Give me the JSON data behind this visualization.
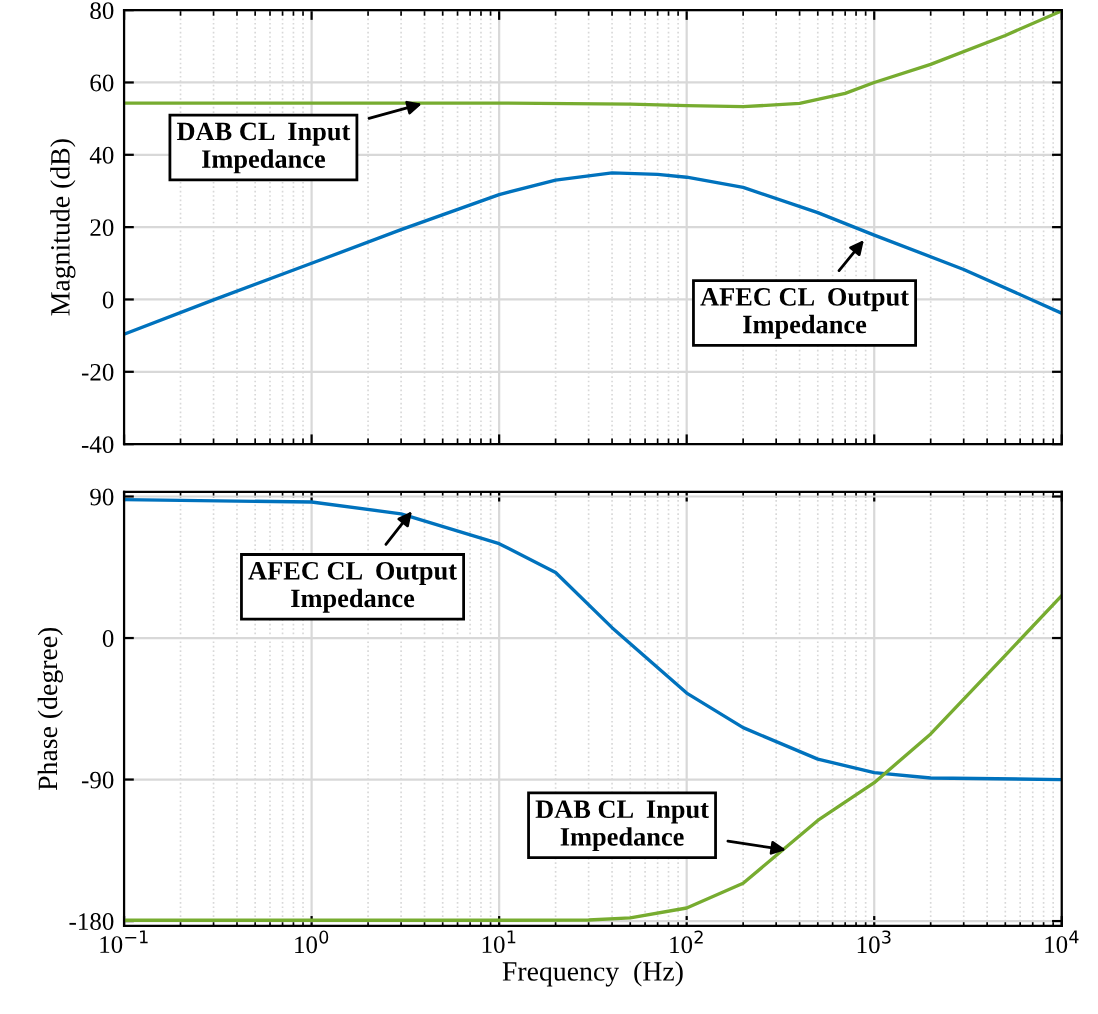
{
  "chart_data": [
    {
      "type": "line",
      "ylabel": "Magnitude (dB)",
      "log": "x",
      "grid": true,
      "tick_labels": "y",
      "xlim": [
        0.1,
        10000
      ],
      "xticks": [
        {
          "value": 0.1,
          "label": null
        },
        {
          "value": 1,
          "label": null
        },
        {
          "value": 10,
          "label": null
        },
        {
          "value": 100,
          "label": null
        },
        {
          "value": 1000,
          "label": null
        },
        {
          "value": 10000,
          "label": null
        }
      ],
      "ylim": [
        -40,
        80
      ],
      "yticks": [
        -40,
        -20,
        0,
        20,
        40,
        60,
        80
      ],
      "series": [
        {
          "color": "#0072bd",
          "x": [
            0.1,
            0.3,
            1,
            3,
            10,
            20,
            40,
            70,
            100,
            200,
            500,
            1000,
            3000,
            10000
          ],
          "values": [
            -9.6,
            -0.1,
            10,
            19.3,
            29,
            33,
            35,
            34.6,
            33.8,
            31,
            24,
            17.8,
            8.3,
            -3.8
          ]
        },
        {
          "color": "#77ac30",
          "x": [
            0.1,
            1,
            10,
            50,
            100,
            200,
            400,
            700,
            1000,
            2000,
            5000,
            10000
          ],
          "values": [
            54.3,
            54.3,
            54.3,
            54,
            53.6,
            53.3,
            54.2,
            57,
            60,
            65,
            73,
            79.8
          ]
        }
      ],
      "annotations": [
        {
          "text": "DAB CL  Input\nImpedance",
          "x": 4,
          "y": 54.3
        },
        {
          "text": "AFEC CL  Output\nImpedance",
          "x": 900,
          "y": 17
        }
      ]
    },
    {
      "type": "line",
      "xlabel": "Frequency  (Hz)",
      "ylabel": "Phase (degree)",
      "log": "x",
      "grid": true,
      "xlim": [
        0.1,
        10000
      ],
      "xticks": [
        {
          "value": 0.1,
          "label": "10$^{−1}$"
        },
        {
          "value": 1,
          "label": "10$^{0}$"
        },
        {
          "value": 10,
          "label": "10$^{1}$"
        },
        {
          "value": 100,
          "label": "10$^{2}$"
        },
        {
          "value": 1000,
          "label": "10$^{3}$"
        },
        {
          "value": 10000,
          "label": "10$^{4}$"
        }
      ],
      "ylim": [
        -183,
        93
      ],
      "yticks": [
        -180,
        -90,
        0,
        90
      ],
      "series": [
        {
          "color": "#0072bd",
          "x": [
            0.1,
            1,
            3,
            10,
            20,
            40,
            100,
            200,
            500,
            1000,
            2000,
            10000
          ],
          "values": [
            88,
            86.5,
            79,
            60,
            41.7,
            6.6,
            -35,
            -57,
            -77,
            -85.6,
            -89,
            -90
          ]
        },
        {
          "color": "#77ac30",
          "x": [
            0.1,
            1,
            10,
            30,
            50,
            100,
            200,
            500,
            1000,
            2000,
            5000,
            10000
          ],
          "values": [
            -179.5,
            -179.5,
            -179.5,
            -179.3,
            -178,
            -171.7,
            -156,
            -116,
            -92,
            -61,
            -11,
            27
          ]
        }
      ],
      "annotations": [
        {
          "text": "AFEC CL  Output\nImpedance",
          "x": 3.5,
          "y": 82
        },
        {
          "text": "DAB CL  Input\nImpedance",
          "x": 350,
          "y": -135
        }
      ]
    }
  ]
}
